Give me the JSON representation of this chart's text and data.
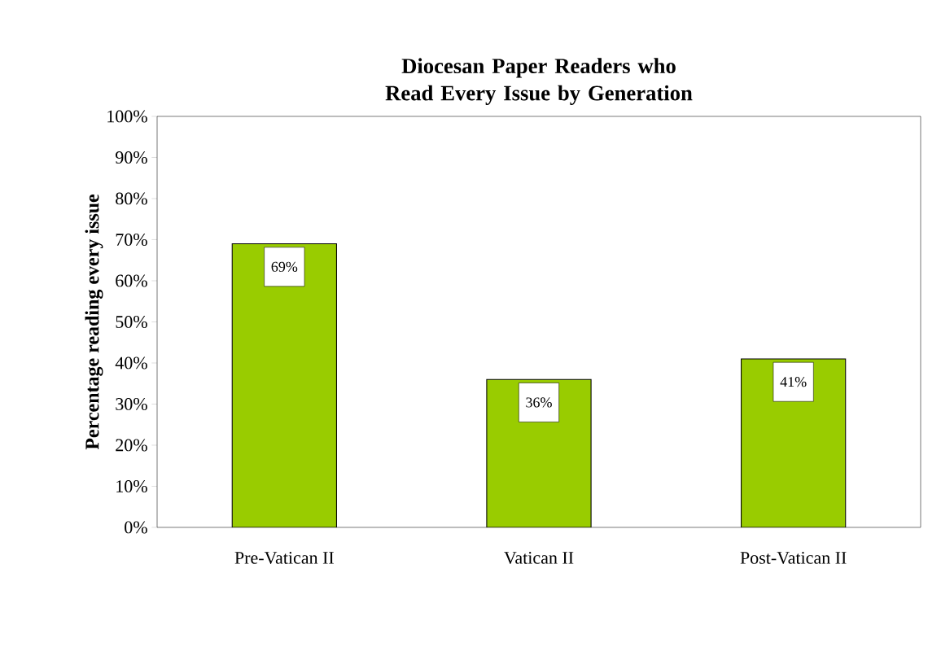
{
  "chart_data": {
    "type": "bar",
    "title": "Diocesan Paper Readers who Read Every Issue by Generation",
    "ylabel": "Percentage reading every issue",
    "categories": [
      "Pre-Vatican II",
      "Vatican II",
      "Post-Vatican II"
    ],
    "values": [
      69,
      36,
      41
    ],
    "value_labels": [
      "69%",
      "36%",
      "41%"
    ],
    "color": "#99cc00",
    "ylim": [
      0,
      100
    ],
    "yticks": [
      {
        "value": 0,
        "label": "0%"
      },
      {
        "value": 10,
        "label": "10%"
      },
      {
        "value": 20,
        "label": "20%"
      },
      {
        "value": 30,
        "label": "30%"
      },
      {
        "value": 40,
        "label": "40%"
      },
      {
        "value": 50,
        "label": "50%"
      },
      {
        "value": 60,
        "label": "60%"
      },
      {
        "value": 70,
        "label": "70%"
      },
      {
        "value": 80,
        "label": "80%"
      },
      {
        "value": 90,
        "label": "90%"
      },
      {
        "value": 100,
        "label": "100%"
      }
    ]
  }
}
